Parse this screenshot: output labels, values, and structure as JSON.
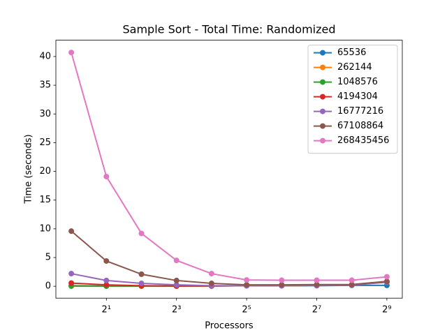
{
  "chart_data": {
    "type": "line",
    "title": "Sample Sort - Total Time: Randomized",
    "x_label": "Processors",
    "y_label": "Time (seconds)",
    "x_scale": "log2",
    "x": [
      1,
      2,
      4,
      8,
      16,
      32,
      64,
      128,
      256,
      512
    ],
    "xlim": [
      0.737,
      694.7
    ],
    "xticks": [
      {
        "value": 2,
        "label": "2¹"
      },
      {
        "value": 8,
        "label": "2³"
      },
      {
        "value": 32,
        "label": "2⁵"
      },
      {
        "value": 128,
        "label": "2⁷"
      },
      {
        "value": 512,
        "label": "2⁹"
      }
    ],
    "ylim": [
      -2.07,
      42.84
    ],
    "yticks": [
      0,
      5,
      10,
      15,
      20,
      25,
      30,
      35,
      40
    ],
    "legend": "upper right",
    "series": [
      {
        "name": "65536",
        "color": "#1f77b4",
        "values": [
          0.02,
          0.02,
          0.02,
          0.03,
          0.05,
          0.1,
          0.1,
          0.1,
          0.15,
          0.15
        ]
      },
      {
        "name": "262144",
        "color": "#ff7f0e",
        "values": [
          0.05,
          0.05,
          0.05,
          0.05,
          0.05,
          0.1,
          0.1,
          0.15,
          0.2,
          0.8
        ]
      },
      {
        "name": "1048576",
        "color": "#2ca02c",
        "values": [
          0.1,
          0.05,
          0.05,
          0.03,
          0.05,
          0.1,
          0.1,
          0.15,
          0.2,
          0.75
        ]
      },
      {
        "name": "4194304",
        "color": "#d62728",
        "values": [
          0.55,
          0.25,
          0.1,
          0.05,
          0.05,
          0.1,
          0.1,
          0.15,
          0.2,
          0.8
        ]
      },
      {
        "name": "16777216",
        "color": "#9467bd",
        "values": [
          2.2,
          1.0,
          0.5,
          0.25,
          0.1,
          0.1,
          0.1,
          0.15,
          0.2,
          0.7
        ]
      },
      {
        "name": "67108864",
        "color": "#8c564b",
        "values": [
          9.6,
          4.4,
          2.1,
          1.0,
          0.5,
          0.25,
          0.25,
          0.3,
          0.3,
          0.85
        ]
      },
      {
        "name": "268435456",
        "color": "#e377c2",
        "values": [
          40.7,
          19.1,
          9.2,
          4.5,
          2.2,
          1.1,
          1.05,
          1.05,
          1.05,
          1.65
        ]
      }
    ]
  }
}
